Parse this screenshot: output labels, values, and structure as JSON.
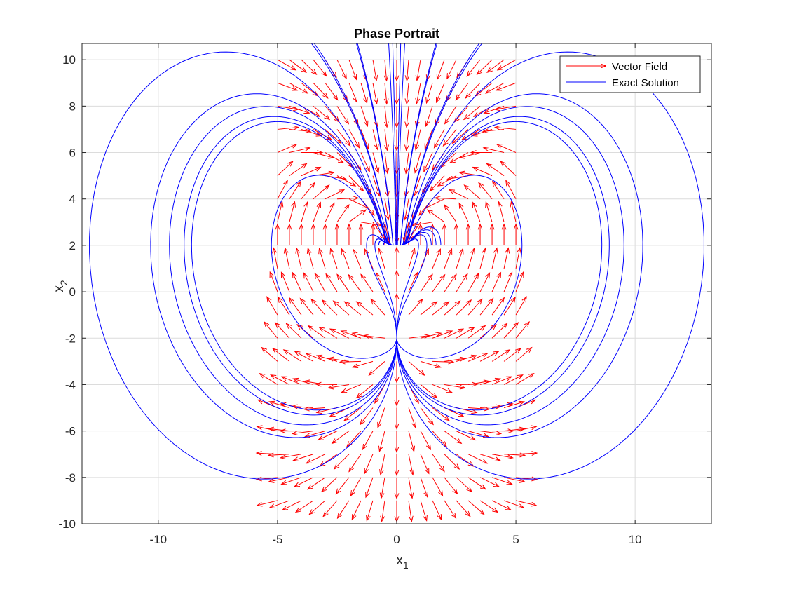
{
  "chart_data": {
    "type": "quiver",
    "title": "Phase Portrait",
    "xlabel": {
      "base": "x",
      "sub": "1"
    },
    "ylabel": {
      "base": "x",
      "sub": "2"
    },
    "xlim": [
      -13.2,
      13.2
    ],
    "ylim": [
      -10,
      10.7
    ],
    "xticks": [
      -10,
      -5,
      0,
      5,
      10
    ],
    "yticks": [
      -10,
      -8,
      -6,
      -4,
      -2,
      0,
      2,
      4,
      6,
      8,
      10
    ],
    "grid": true,
    "legend": {
      "position": "top-right",
      "entries": [
        {
          "label": "Vector Field",
          "color": "#ff0000",
          "marker": "arrow"
        },
        {
          "label": "Exact Solution",
          "color": "#0000ff",
          "marker": "line"
        }
      ]
    },
    "vector_field": {
      "color": "#ff0000",
      "grid_x": {
        "start": -5,
        "stop": 5,
        "step": 0.5
      },
      "grid_y": {
        "start": -10,
        "stop": 10,
        "step": 1
      }
    },
    "series": [
      {
        "name": "Exact Solution",
        "color": "#0000ff"
      }
    ],
    "critical_points": [
      [
        -1.1,
        2.0
      ],
      [
        1.1,
        2.0
      ]
    ]
  }
}
